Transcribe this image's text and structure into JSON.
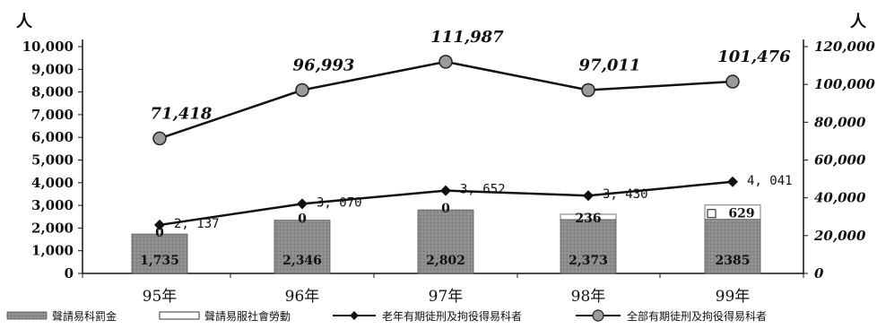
{
  "chart_data": {
    "type": "bar",
    "categories": [
      "95年",
      "96年",
      "97年",
      "98年",
      "99年"
    ],
    "left_axis": {
      "unit": "人",
      "ylim": [
        0,
        10000
      ],
      "ticks": [
        "0",
        "1,000",
        "2,000",
        "3,000",
        "4,000",
        "5,000",
        "6,000",
        "7,000",
        "8,000",
        "9,000",
        "10,000"
      ]
    },
    "right_axis": {
      "unit": "人",
      "ylim": [
        0,
        120000
      ],
      "ticks": [
        "0",
        "20,000",
        "40,000",
        "60,000",
        "80,000",
        "100,000",
        "120,000"
      ]
    },
    "series": [
      {
        "name": "聲請易科罰金",
        "kind": "bar",
        "axis": "left",
        "color": "#8c8c8c",
        "values": [
          1735,
          2346,
          2802,
          2373,
          2385
        ],
        "labels": [
          "1,735",
          "2,346",
          "2,802",
          "2,373",
          "2385"
        ]
      },
      {
        "name": "聲請易服社會勞動",
        "kind": "bar",
        "axis": "left",
        "color": "#ffffff",
        "values": [
          0,
          0,
          0,
          236,
          629
        ],
        "labels": [
          "0",
          "0",
          "0",
          "236",
          "629"
        ]
      },
      {
        "name": "老年有期徒刑及拘役得易科者",
        "kind": "line",
        "axis": "left",
        "marker": "diamond",
        "values": [
          2137,
          3070,
          3652,
          3430,
          4041
        ],
        "labels": [
          "2, 137",
          "3, 070",
          "3, 652",
          "3, 430",
          "4, 041"
        ]
      },
      {
        "name": "全部有期徒刑及拘役得易科者",
        "kind": "line",
        "axis": "right",
        "marker": "circle",
        "values": [
          71418,
          96993,
          111987,
          97011,
          101476
        ],
        "labels": [
          "71,418",
          "96,993",
          "111,987",
          "97,011",
          "101,476"
        ]
      }
    ],
    "grid": false,
    "legend": "bottom"
  }
}
